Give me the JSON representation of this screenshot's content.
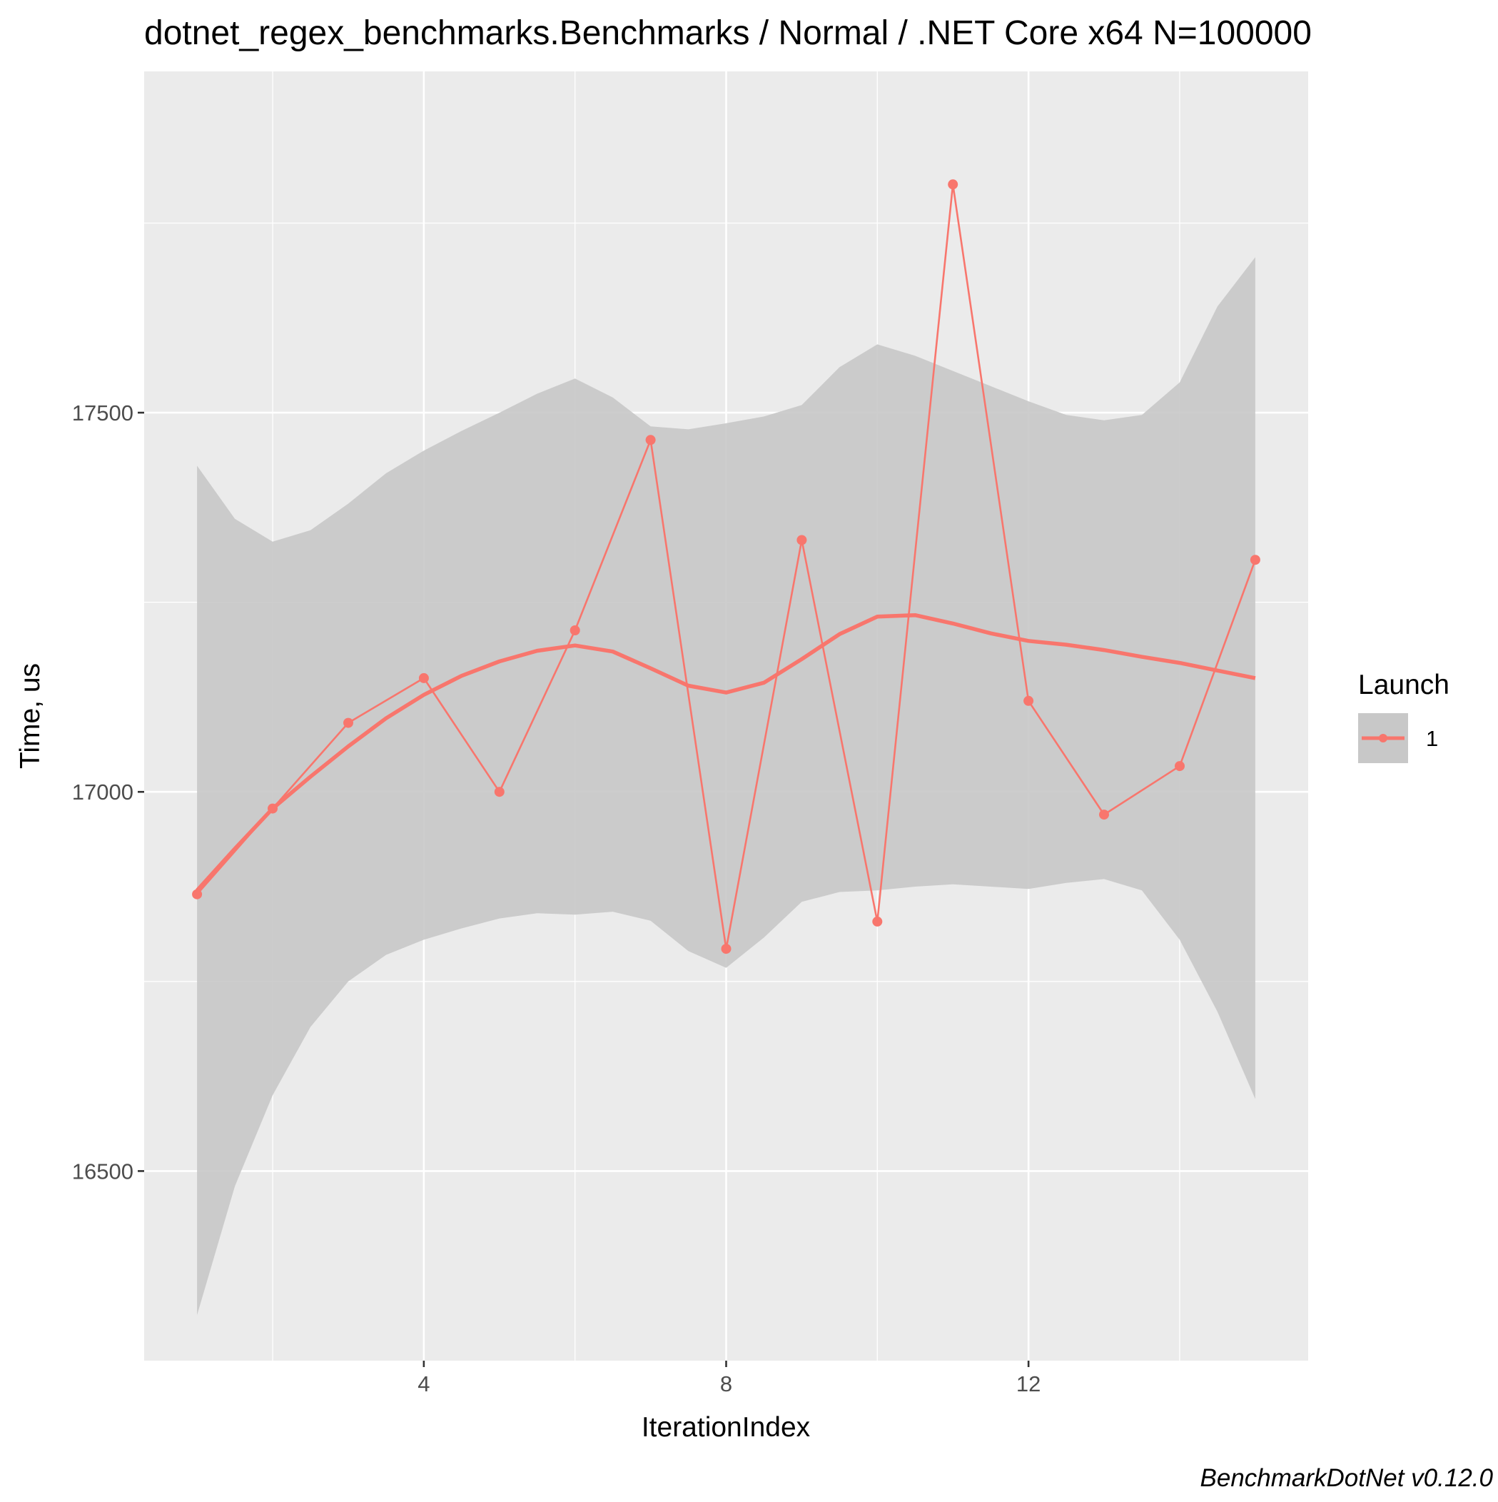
{
  "chart_data": {
    "type": "line",
    "title": "dotnet_regex_benchmarks.Benchmarks / Normal / .NET Core x64 N=100000",
    "xlabel": "IterationIndex",
    "ylabel": "Time, us",
    "xlim": [
      0.3,
      15.7
    ],
    "ylim": [
      16250,
      17950
    ],
    "x_ticks": [
      4,
      8,
      12
    ],
    "x_tick_labels": [
      "4",
      "8",
      "12"
    ],
    "y_ticks": [
      16500,
      17000,
      17500
    ],
    "y_tick_labels": [
      "16500",
      "17000",
      "17500"
    ],
    "grid": true,
    "legend": {
      "title": "Launch",
      "placement": "right",
      "entries": [
        "1"
      ]
    },
    "caption": "BenchmarkDotNet v0.12.0",
    "colors": {
      "series": "#f8766d",
      "ribbon": "#c8c8c8",
      "panel": "#ebebeb",
      "grid": "#ffffff"
    },
    "series": [
      {
        "name": "1",
        "x": [
          1,
          2,
          3,
          4,
          5,
          6,
          7,
          8,
          9,
          10,
          11,
          12,
          13,
          14,
          15
        ],
        "values": [
          16865,
          16978,
          17091,
          17150,
          17000,
          17213,
          17464,
          16793,
          17332,
          16829,
          17801,
          17120,
          16970,
          17034,
          17306
        ]
      }
    ],
    "smooth": {
      "x": [
        1,
        1.5,
        2,
        2.5,
        3,
        3.5,
        4,
        4.5,
        5,
        5.5,
        6,
        6.5,
        7,
        7.5,
        8,
        8.5,
        9,
        9.5,
        10,
        10.5,
        11,
        11.5,
        12,
        12.5,
        13,
        13.5,
        14,
        14.5,
        15
      ],
      "y": [
        16870,
        16925,
        16978,
        17020,
        17060,
        17097,
        17128,
        17153,
        17172,
        17186,
        17193,
        17185,
        17163,
        17140,
        17131,
        17144,
        17175,
        17208,
        17231,
        17233,
        17222,
        17209,
        17199,
        17194,
        17187,
        17178,
        17170,
        17160,
        17150
      ],
      "lower": [
        16310,
        16480,
        16600,
        16690,
        16750,
        16785,
        16805,
        16820,
        16833,
        16840,
        16838,
        16842,
        16830,
        16790,
        16768,
        16808,
        16855,
        16868,
        16870,
        16875,
        16878,
        16875,
        16872,
        16880,
        16885,
        16870,
        16805,
        16710,
        16595
      ],
      "upper": [
        17430,
        17360,
        17330,
        17345,
        17380,
        17420,
        17450,
        17476,
        17500,
        17525,
        17545,
        17520,
        17482,
        17478,
        17486,
        17495,
        17510,
        17560,
        17590,
        17575,
        17555,
        17535,
        17515,
        17497,
        17490,
        17497,
        17540,
        17640,
        17705
      ]
    }
  }
}
